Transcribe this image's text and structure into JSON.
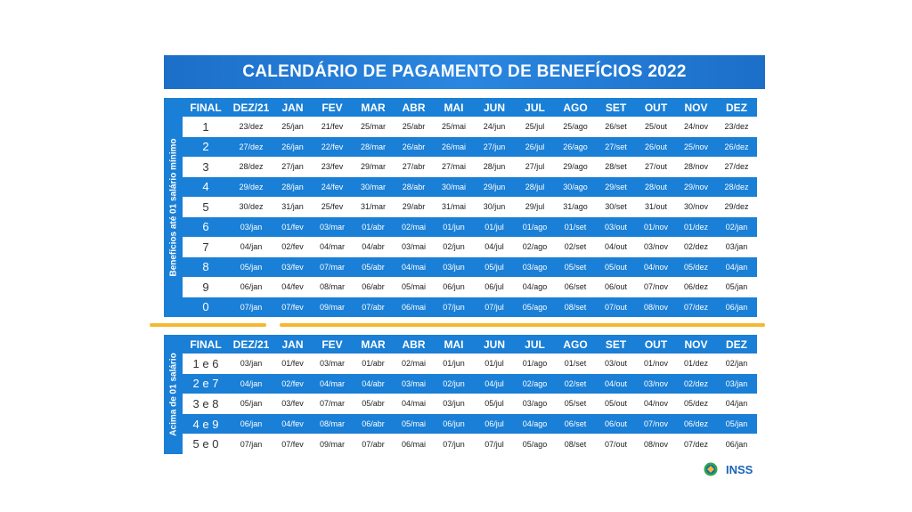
{
  "title": "CALENDÁRIO DE PAGAMENTO DE BENEFÍCIOS 2022",
  "headers": [
    "FINAL",
    "DEZ/21",
    "JAN",
    "FEV",
    "MAR",
    "ABR",
    "MAI",
    "JUN",
    "JUL",
    "AGO",
    "SET",
    "OUT",
    "NOV",
    "DEZ"
  ],
  "section1": {
    "side_label": "Benefícios até 01 salário mínimo",
    "rows": [
      [
        "1",
        "23/dez",
        "25/jan",
        "21/fev",
        "25/mar",
        "25/abr",
        "25/mai",
        "24/jun",
        "25/jul",
        "25/ago",
        "26/set",
        "25/out",
        "24/nov",
        "23/dez"
      ],
      [
        "2",
        "27/dez",
        "26/jan",
        "22/fev",
        "28/mar",
        "26/abr",
        "26/mai",
        "27/jun",
        "26/jul",
        "26/ago",
        "27/set",
        "26/out",
        "25/nov",
        "26/dez"
      ],
      [
        "3",
        "28/dez",
        "27/jan",
        "23/fev",
        "29/mar",
        "27/abr",
        "27/mai",
        "28/jun",
        "27/jul",
        "29/ago",
        "28/set",
        "27/out",
        "28/nov",
        "27/dez"
      ],
      [
        "4",
        "29/dez",
        "28/jan",
        "24/fev",
        "30/mar",
        "28/abr",
        "30/mai",
        "29/jun",
        "28/jul",
        "30/ago",
        "29/set",
        "28/out",
        "29/nov",
        "28/dez"
      ],
      [
        "5",
        "30/dez",
        "31/jan",
        "25/fev",
        "31/mar",
        "29/abr",
        "31/mai",
        "30/jun",
        "29/jul",
        "31/ago",
        "30/set",
        "31/out",
        "30/nov",
        "29/dez"
      ],
      [
        "6",
        "03/jan",
        "01/fev",
        "03/mar",
        "01/abr",
        "02/mai",
        "01/jun",
        "01/jul",
        "01/ago",
        "01/set",
        "03/out",
        "01/nov",
        "01/dez",
        "02/jan"
      ],
      [
        "7",
        "04/jan",
        "02/fev",
        "04/mar",
        "04/abr",
        "03/mai",
        "02/jun",
        "04/jul",
        "02/ago",
        "02/set",
        "04/out",
        "03/nov",
        "02/dez",
        "03/jan"
      ],
      [
        "8",
        "05/jan",
        "03/fev",
        "07/mar",
        "05/abr",
        "04/mai",
        "03/jun",
        "05/jul",
        "03/ago",
        "05/set",
        "05/out",
        "04/nov",
        "05/dez",
        "04/jan"
      ],
      [
        "9",
        "06/jan",
        "04/fev",
        "08/mar",
        "06/abr",
        "05/mai",
        "06/jun",
        "06/jul",
        "04/ago",
        "06/set",
        "06/out",
        "07/nov",
        "06/dez",
        "05/jan"
      ],
      [
        "0",
        "07/jan",
        "07/fev",
        "09/mar",
        "07/abr",
        "06/mai",
        "07/jun",
        "07/jul",
        "05/ago",
        "08/set",
        "07/out",
        "08/nov",
        "07/dez",
        "06/jan"
      ]
    ]
  },
  "section2": {
    "side_label": "Acima de 01 salário",
    "rows": [
      [
        "1 e 6",
        "03/jan",
        "01/fev",
        "03/mar",
        "01/abr",
        "02/mai",
        "01/jun",
        "01/jul",
        "01/ago",
        "01/set",
        "03/out",
        "01/nov",
        "01/dez",
        "02/jan"
      ],
      [
        "2 e 7",
        "04/jan",
        "02/fev",
        "04/mar",
        "04/abr",
        "03/mai",
        "02/jun",
        "04/jul",
        "02/ago",
        "02/set",
        "04/out",
        "03/nov",
        "02/dez",
        "03/jan"
      ],
      [
        "3 e 8",
        "05/jan",
        "03/fev",
        "07/mar",
        "05/abr",
        "04/mai",
        "03/jun",
        "05/jul",
        "03/ago",
        "05/set",
        "05/out",
        "04/nov",
        "05/dez",
        "04/jan"
      ],
      [
        "4 e 9",
        "06/jan",
        "04/fev",
        "08/mar",
        "06/abr",
        "05/mai",
        "06/jun",
        "06/jul",
        "04/ago",
        "06/set",
        "06/out",
        "07/nov",
        "06/dez",
        "05/jan"
      ],
      [
        "5 e 0",
        "07/jan",
        "07/fev",
        "09/mar",
        "07/abr",
        "06/mai",
        "07/jun",
        "07/jul",
        "05/ago",
        "08/set",
        "07/out",
        "08/nov",
        "07/dez",
        "06/jan"
      ]
    ]
  },
  "logo": {
    "text": "INSS",
    "icon": "inss-logo-icon"
  },
  "colors": {
    "blue": "#1a7fd6",
    "title_blue": "#2a86e0",
    "separator": "#f5b82e"
  }
}
